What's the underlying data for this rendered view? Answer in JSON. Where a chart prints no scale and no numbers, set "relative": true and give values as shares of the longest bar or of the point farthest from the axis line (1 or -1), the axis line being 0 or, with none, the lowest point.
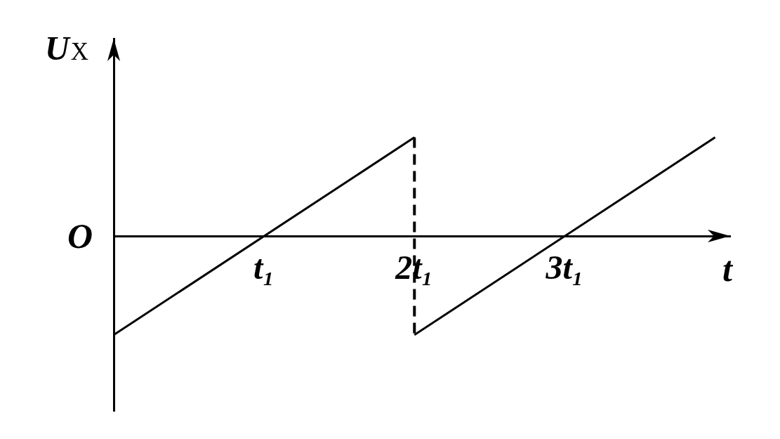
{
  "chart_data": {
    "type": "line",
    "xlabel": "t",
    "ylabel": "U$_{X}$",
    "annotations": [
      "O"
    ],
    "relative": true,
    "xlim": [
      0,
      4.1
    ],
    "xticks": [
      {
        "value": 1,
        "label": "t₁"
      },
      {
        "value": 2,
        "label": "2t₁"
      },
      {
        "value": 3,
        "label": "3t₁"
      }
    ],
    "grid": false,
    "legend": false,
    "marker": "none",
    "ref_lines": [
      {
        "axis": "x",
        "value": 2,
        "color": "#000000",
        "line_style": "dashed"
      }
    ],
    "series": [
      {
        "x": [
          0,
          2
        ],
        "values": [
          -1,
          1
        ],
        "color": "#000000"
      },
      {
        "x": [
          2,
          4
        ],
        "values": [
          -1,
          1
        ],
        "color": "#000000"
      }
    ]
  }
}
